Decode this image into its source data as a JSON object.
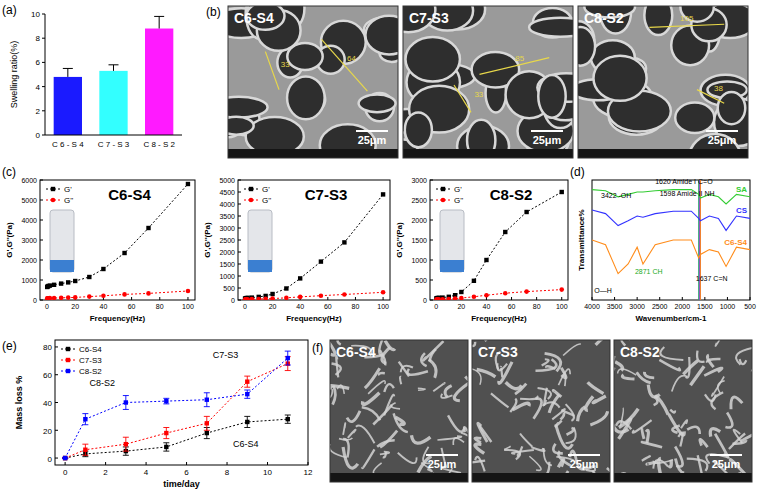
{
  "panel_labels": [
    "(a)",
    "(b)",
    "(c)",
    "(d)",
    "(e)",
    "(f)"
  ],
  "chart_data": [
    {
      "type": "bar",
      "categories": [
        "C 6 - S 4",
        "C 7 - S 3",
        "C 8 - S 2"
      ],
      "values": [
        4.8,
        5.3,
        8.8
      ],
      "errors": [
        0.7,
        0.5,
        1.0
      ],
      "colors": [
        "#1a1aff",
        "#33ffff",
        "#ff1aff"
      ],
      "ylabel": "Swelling ratio(%)",
      "ylim": [
        0,
        10
      ],
      "yticks": [
        0,
        2,
        4,
        6,
        8,
        10
      ]
    },
    {
      "type": "line",
      "title": "C6-S4",
      "xlabel": "Frequency(Hz)",
      "ylabel": "G',G''(Pa)",
      "x": [
        0.1,
        0.5,
        1,
        2,
        5,
        10,
        15,
        20,
        30,
        40,
        55,
        72,
        100
      ],
      "series": [
        {
          "name": "G'",
          "color": "#000000",
          "marker": "square",
          "line_style": "dotted",
          "values": [
            650,
            680,
            700,
            720,
            760,
            820,
            880,
            950,
            1150,
            1550,
            2350,
            3600,
            5800
          ]
        },
        {
          "name": "G''",
          "color": "#ff0000",
          "marker": "circle",
          "line_style": "dotted",
          "values": [
            80,
            85,
            90,
            95,
            100,
            110,
            120,
            130,
            170,
            210,
            280,
            330,
            450
          ]
        }
      ],
      "xlim": [
        -5,
        105
      ],
      "xticks": [
        0,
        20,
        40,
        60,
        80,
        100
      ],
      "ylim": [
        0,
        6000
      ],
      "yticks": [
        0,
        1000,
        2000,
        3000,
        4000,
        5000,
        6000
      ],
      "legend": "upper left"
    },
    {
      "type": "line",
      "title": "C7-S3",
      "xlabel": "Frequency(Hz)",
      "ylabel": "G',G''(Pa)",
      "x": [
        0.1,
        0.5,
        1,
        2,
        5,
        10,
        15,
        20,
        30,
        40,
        55,
        72,
        100
      ],
      "series": [
        {
          "name": "G'",
          "color": "#000000",
          "marker": "square",
          "line_style": "dotted",
          "values": [
            60,
            70,
            80,
            90,
            100,
            130,
            170,
            250,
            480,
            900,
            1600,
            2400,
            4400
          ]
        },
        {
          "name": "G''",
          "color": "#ff0000",
          "marker": "circle",
          "line_style": "dotted",
          "values": [
            20,
            25,
            30,
            30,
            35,
            40,
            50,
            60,
            90,
            130,
            180,
            230,
            320
          ]
        }
      ],
      "xlim": [
        -5,
        105
      ],
      "xticks": [
        0,
        20,
        40,
        60,
        80,
        100
      ],
      "ylim": [
        0,
        5000
      ],
      "yticks": [
        0,
        500,
        1000,
        1500,
        2000,
        2500,
        3000,
        3500,
        4000,
        4500,
        5000
      ],
      "legend": "upper left"
    },
    {
      "type": "line",
      "title": "C8-S2",
      "xlabel": "Frequency(Hz)",
      "ylabel": "G',G''(Pa)",
      "x": [
        0.1,
        0.5,
        1,
        2,
        5,
        10,
        15,
        20,
        30,
        40,
        55,
        72,
        100
      ],
      "series": [
        {
          "name": "G'",
          "color": "#000000",
          "marker": "square",
          "line_style": "dotted",
          "values": [
            40,
            45,
            50,
            55,
            60,
            80,
            120,
            200,
            480,
            1000,
            1700,
            2200,
            2700
          ]
        },
        {
          "name": "G''",
          "color": "#ff0000",
          "marker": "circle",
          "line_style": "dotted",
          "values": [
            10,
            12,
            15,
            15,
            20,
            25,
            35,
            50,
            80,
            120,
            170,
            210,
            260
          ]
        }
      ],
      "xlim": [
        -5,
        105
      ],
      "xticks": [
        0,
        20,
        40,
        60,
        80,
        100
      ],
      "ylim": [
        0,
        3000
      ],
      "yticks": [
        0,
        500,
        1000,
        1500,
        2000,
        2500,
        3000
      ],
      "legend": "upper left"
    },
    {
      "type": "line",
      "xlabel": "Wavenumber/cm-1",
      "ylabel": "Transmittance%",
      "x": [
        4000,
        3700,
        3422,
        3200,
        3000,
        2871,
        2600,
        2200,
        1800,
        1637,
        1598,
        1400,
        1200,
        1030,
        800,
        500
      ],
      "series": [
        {
          "name": "SA",
          "color": "#33cc33",
          "values": [
            92,
            91,
            86,
            88,
            90,
            90,
            91,
            92,
            92,
            88,
            85,
            88,
            86,
            80,
            88,
            86
          ]
        },
        {
          "name": "CS",
          "color": "#3333ff",
          "values": [
            75,
            72,
            62,
            66,
            70,
            69,
            72,
            74,
            74,
            68,
            66,
            70,
            68,
            58,
            70,
            68
          ]
        },
        {
          "name": "C6-S4",
          "color": "#ff8c1a",
          "values": [
            50,
            46,
            22,
            30,
            44,
            30,
            46,
            50,
            50,
            35,
            38,
            42,
            40,
            28,
            44,
            42
          ]
        }
      ],
      "xlim": [
        4000,
        500
      ],
      "xticks": [
        4000,
        3500,
        3000,
        2500,
        2000,
        1500,
        1000,
        500
      ],
      "ylim": [
        0,
        100
      ],
      "tick_labels": "x",
      "legend": "right",
      "vlines": [
        1637,
        1620,
        1598
      ],
      "annotations": [
        {
          "text": "3422 -OH",
          "x": 3800,
          "y": 85
        },
        {
          "text": "1620 Amide I C=O",
          "x": 2600,
          "y": 97
        },
        {
          "text": "1598 Amide II NH",
          "x": 2500,
          "y": 87
        },
        {
          "text": "2871 CH",
          "x": 3050,
          "y": 22
        },
        {
          "text": "1637 C=N",
          "x": 1700,
          "y": 16
        },
        {
          "text": "O—H",
          "x": 3950,
          "y": 6
        }
      ]
    },
    {
      "type": "line",
      "xlabel": "time/day",
      "ylabel": "Mass loss %",
      "x": [
        0,
        1,
        3,
        5,
        7,
        9,
        11
      ],
      "series": [
        {
          "name": "C6-S4",
          "color": "#000000",
          "marker": "square",
          "line_style": "dotted",
          "values": [
            0,
            3,
            5,
            8,
            18,
            26,
            28
          ],
          "errors": [
            0,
            2,
            3,
            3,
            4,
            4,
            3
          ]
        },
        {
          "name": "C7-S3",
          "color": "#ff0000",
          "marker": "square",
          "line_style": "dotted",
          "values": [
            0,
            6,
            10,
            18,
            25,
            55,
            68
          ],
          "errors": [
            0,
            4,
            5,
            4,
            5,
            4,
            5
          ]
        },
        {
          "name": "C8-S2",
          "color": "#0000ff",
          "marker": "square",
          "line_style": "dotted",
          "values": [
            0,
            28,
            40,
            41,
            42,
            46,
            72
          ],
          "errors": [
            0,
            4,
            5,
            2,
            5,
            3,
            5
          ]
        }
      ],
      "xlim": [
        -0.5,
        12
      ],
      "xticks": [
        0,
        2,
        4,
        6,
        8,
        10,
        12
      ],
      "ylim": [
        -5,
        85
      ],
      "yticks": [
        0,
        20,
        40,
        60,
        80
      ],
      "legend": "upper left",
      "annotations": [
        {
          "text": "C7-S3",
          "x": 7.3,
          "y": 72
        },
        {
          "text": "C8-S2",
          "x": 1.2,
          "y": 52
        },
        {
          "text": "C6-S4",
          "x": 8.3,
          "y": 8
        }
      ]
    }
  ],
  "sem_images": {
    "b": [
      {
        "label": "C6-S4",
        "scale": "25μm",
        "measurements": [
          "33",
          "64"
        ]
      },
      {
        "label": "C7-S3",
        "scale": "25μm",
        "measurements": [
          "33",
          "85"
        ]
      },
      {
        "label": "C8-S2",
        "scale": "25μm",
        "measurements": [
          "105",
          "38"
        ]
      }
    ],
    "f": [
      {
        "label": "C6-S4",
        "scale": "25μm"
      },
      {
        "label": "C7-S3",
        "scale": "25μm"
      },
      {
        "label": "C8-S2",
        "scale": "25μm"
      }
    ]
  }
}
